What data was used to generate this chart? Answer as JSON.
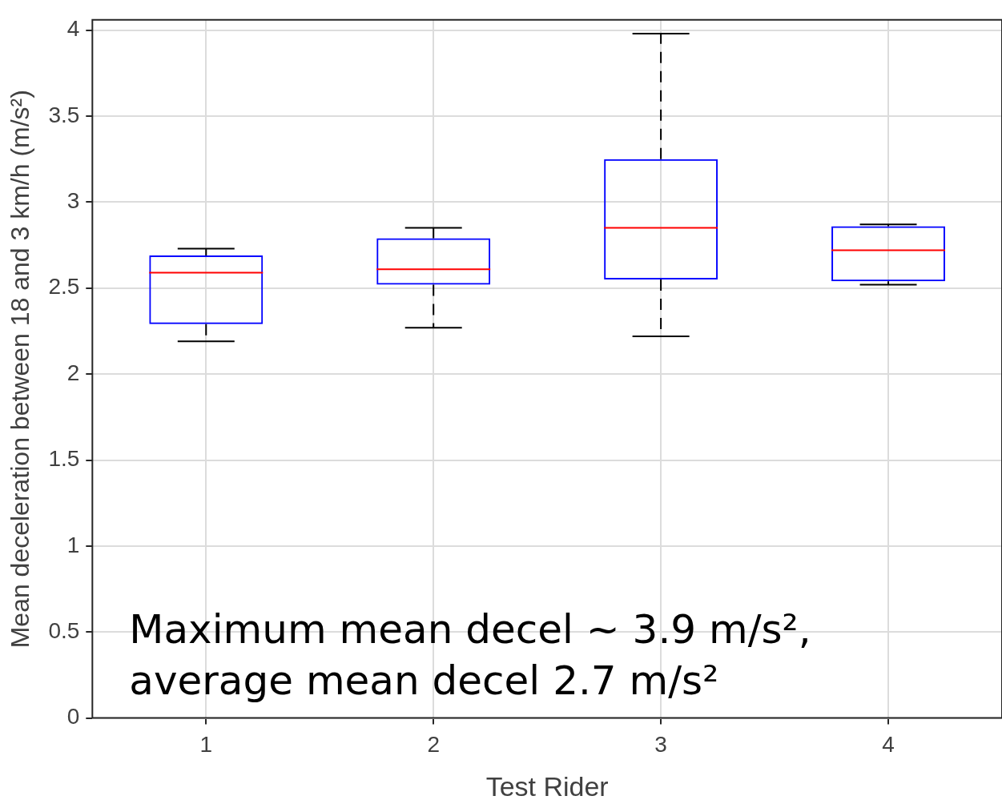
{
  "chart_data": {
    "type": "box",
    "xlabel": "Test Rider",
    "ylabel": "Mean deceleration between 18 and 3 km/h (m/s²)",
    "categories": [
      "1",
      "2",
      "3",
      "4"
    ],
    "series": [
      {
        "color": "#0000ff",
        "boxes": [
          {
            "low": 2.19,
            "q1": 2.29,
            "median": 2.59,
            "q3": 2.69,
            "high": 2.73
          },
          {
            "low": 2.27,
            "q1": 2.52,
            "median": 2.61,
            "q3": 2.79,
            "high": 2.85
          },
          {
            "low": 2.22,
            "q1": 2.55,
            "median": 2.85,
            "q3": 3.25,
            "high": 3.98
          },
          {
            "low": 2.52,
            "q1": 2.54,
            "median": 2.72,
            "q3": 2.86,
            "high": 2.87
          }
        ]
      }
    ],
    "ylim": [
      0,
      4.06
    ],
    "yticks": [
      0,
      0.5,
      1,
      1.5,
      2,
      2.5,
      3,
      3.5,
      4
    ],
    "grid": true,
    "annotations": [
      "Maximum mean decel ~ 3.9 m/s²,",
      "average mean decel 2.7 m/s²"
    ]
  }
}
